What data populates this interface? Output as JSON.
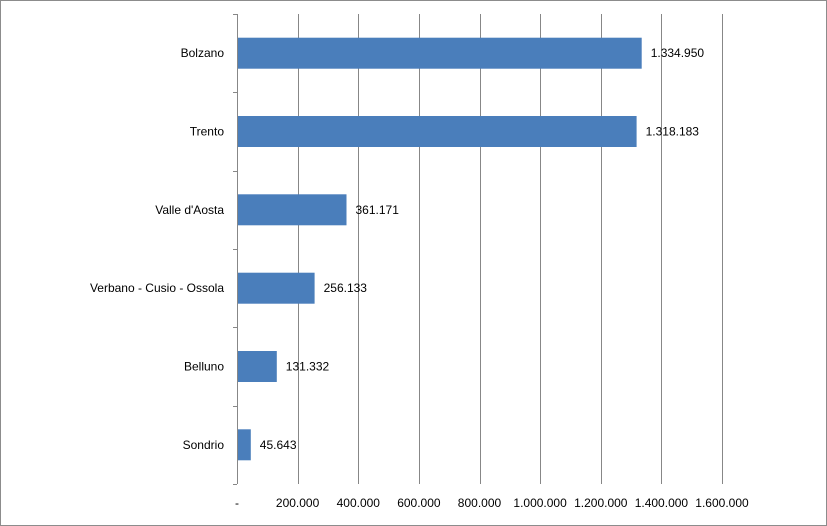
{
  "chart_data": {
    "type": "bar",
    "orientation": "horizontal",
    "title": "",
    "xlabel": "",
    "ylabel": "",
    "categories": [
      "Bolzano",
      "Trento",
      "Valle d'Aosta",
      "Verbano - Cusio - Ossola",
      "Belluno",
      "Sondrio"
    ],
    "values": [
      1334950,
      1318183,
      361171,
      256133,
      131332,
      45643
    ],
    "value_labels": [
      "1.334.950",
      "1.318.183",
      "361.171",
      "256.133",
      "131.332",
      "45.643"
    ],
    "xlim": [
      0,
      1600000
    ],
    "x_ticks": [
      0,
      200000,
      400000,
      600000,
      800000,
      1000000,
      1200000,
      1400000,
      1600000
    ],
    "x_tick_labels": [
      "-",
      "200.000",
      "400.000",
      "600.000",
      "800.000",
      "1.000.000",
      "1.200.000",
      "1.400.000",
      "1.600.000"
    ],
    "grid": "vertical",
    "legend": "none",
    "bar_color": "#4a7ebb",
    "grid_color": "#878787"
  }
}
